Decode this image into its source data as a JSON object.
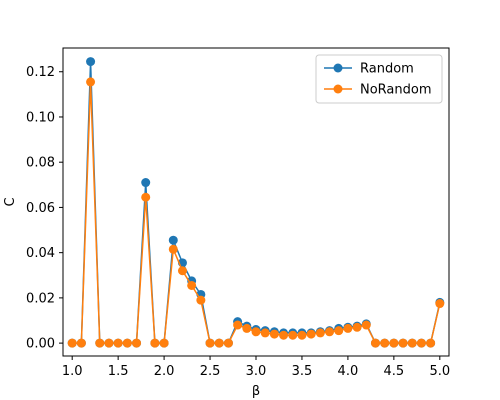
{
  "chart_data": {
    "type": "line",
    "title": "",
    "xlabel": "β",
    "ylabel": "C",
    "xlim": [
      0.9,
      5.1
    ],
    "ylim": [
      -0.0057,
      0.1305
    ],
    "grid": false,
    "legend_position": "top-right",
    "x_ticks": [
      "1.0",
      "1.5",
      "2.0",
      "2.5",
      "3.0",
      "3.5",
      "4.0",
      "4.5",
      "5.0"
    ],
    "x_tick_values": [
      1.0,
      1.5,
      2.0,
      2.5,
      3.0,
      3.5,
      4.0,
      4.5,
      5.0
    ],
    "y_ticks": [
      "0.00",
      "0.02",
      "0.04",
      "0.06",
      "0.08",
      "0.10",
      "0.12"
    ],
    "y_tick_values": [
      0.0,
      0.02,
      0.04,
      0.06,
      0.08,
      0.1,
      0.12
    ],
    "x": [
      1.0,
      1.1,
      1.2,
      1.3,
      1.4,
      1.5,
      1.6,
      1.7,
      1.8,
      1.9,
      2.0,
      2.1,
      2.2,
      2.3,
      2.4,
      2.5,
      2.6,
      2.7,
      2.8,
      2.9,
      3.0,
      3.1,
      3.2,
      3.3,
      3.4,
      3.5,
      3.6,
      3.7,
      3.8,
      3.9,
      4.0,
      4.1,
      4.2,
      4.3,
      4.4,
      4.5,
      4.6,
      4.7,
      4.8,
      4.9,
      5.0
    ],
    "series": [
      {
        "name": "Random",
        "color": "#1f77b4",
        "values": [
          0.0,
          0.0,
          0.1245,
          0.0,
          0.0,
          0.0,
          0.0,
          0.0,
          0.071,
          0.0,
          0.0,
          0.0455,
          0.0355,
          0.0275,
          0.0215,
          0.0,
          0.0,
          0.0,
          0.0095,
          0.0075,
          0.006,
          0.0055,
          0.005,
          0.0045,
          0.0045,
          0.0045,
          0.0045,
          0.005,
          0.0055,
          0.0065,
          0.007,
          0.0075,
          0.0085,
          0.0,
          0.0,
          0.0,
          0.0,
          0.0,
          0.0,
          0.0,
          0.018
        ]
      },
      {
        "name": "NoRandom",
        "color": "#ff7f0e",
        "values": [
          0.0,
          0.0,
          0.1155,
          0.0,
          0.0,
          0.0,
          0.0,
          0.0,
          0.0645,
          0.0,
          0.0,
          0.0415,
          0.032,
          0.0255,
          0.019,
          0.0,
          0.0,
          0.0,
          0.008,
          0.0065,
          0.005,
          0.0045,
          0.004,
          0.0035,
          0.0035,
          0.0035,
          0.004,
          0.0045,
          0.005,
          0.0055,
          0.0065,
          0.007,
          0.008,
          0.0,
          0.0,
          0.0,
          0.0,
          0.0,
          0.0,
          0.0,
          0.0175
        ]
      }
    ]
  }
}
